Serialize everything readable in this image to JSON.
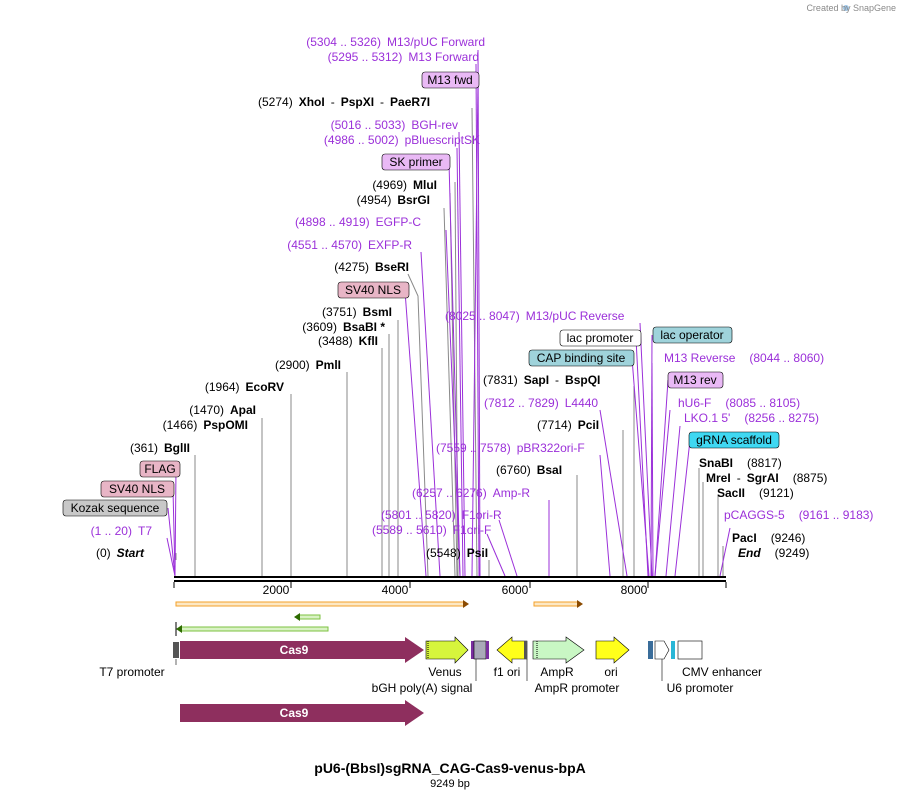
{
  "credit": "Created by  SnapGene",
  "plasmid": {
    "name": "pU6-(BbsI)sgRNA_CAG-Cas9-venus-bpA",
    "length_label": "9249 bp"
  },
  "axis": {
    "ticks": [
      "2000",
      "4000",
      "6000",
      "8000"
    ]
  },
  "site_labels": [
    {
      "id": "m13puc-fwd",
      "pos": "(5304 .. 5326)",
      "name": "M13/pUC Forward",
      "kind": "feat"
    },
    {
      "id": "m13-fwd",
      "pos": "(5295 .. 5312)",
      "name": "M13 Forward",
      "kind": "feat"
    },
    {
      "id": "xhoi",
      "pos": "(5274)",
      "name": "XhoI",
      "extra": [
        "PspXI",
        "PaeR7I"
      ],
      "kind": "enz"
    },
    {
      "id": "bgh-rev",
      "pos": "(5016 .. 5033)",
      "name": "BGH-rev",
      "kind": "feat"
    },
    {
      "id": "pbluescriptsk",
      "pos": "(4986 .. 5002)",
      "name": "pBluescriptSK",
      "kind": "feat"
    },
    {
      "id": "mlui",
      "pos": "(4969)",
      "name": "MluI",
      "kind": "enz"
    },
    {
      "id": "bsrgi",
      "pos": "(4954)",
      "name": "BsrGI",
      "kind": "enz"
    },
    {
      "id": "egfp-c",
      "pos": "(4898 .. 4919)",
      "name": "EGFP-C",
      "kind": "feat"
    },
    {
      "id": "exfp-r",
      "pos": "(4551 .. 4570)",
      "name": "EXFP-R",
      "kind": "feat"
    },
    {
      "id": "bseri",
      "pos": "(4275)",
      "name": "BseRI",
      "kind": "enz"
    },
    {
      "id": "bsmi",
      "pos": "(3751)",
      "name": "BsmI",
      "kind": "enz"
    },
    {
      "id": "bsabi",
      "pos": "(3609)",
      "name": "BsaBI *",
      "kind": "enz"
    },
    {
      "id": "kfli",
      "pos": "(3488)",
      "name": "KflI",
      "kind": "enz"
    },
    {
      "id": "pmli",
      "pos": "(2900)",
      "name": "PmlI",
      "kind": "enz"
    },
    {
      "id": "ecorv",
      "pos": "(1964)",
      "name": "EcoRV",
      "kind": "enz"
    },
    {
      "id": "apai",
      "pos": "(1470)",
      "name": "ApaI",
      "kind": "enz"
    },
    {
      "id": "pspomi",
      "pos": "(1466)",
      "name": "PspOMI",
      "kind": "enz"
    },
    {
      "id": "bglii",
      "pos": "(361)",
      "name": "BglII",
      "kind": "enz"
    },
    {
      "id": "t7",
      "pos": "(1 .. 20)",
      "name": "T7",
      "kind": "feat"
    },
    {
      "id": "start",
      "pos": "(0)",
      "name": "Start",
      "kind": "start"
    },
    {
      "id": "m13puc-rev",
      "pos": "(8025 .. 8047)",
      "name": "M13/pUC Reverse",
      "kind": "feat"
    },
    {
      "id": "sapi",
      "pos": "(7831)",
      "name": "SapI",
      "extra": [
        "BspQI"
      ],
      "kind": "enz"
    },
    {
      "id": "l4440",
      "pos": "(7812 .. 7829)",
      "name": "L4440",
      "kind": "feat"
    },
    {
      "id": "pcii",
      "pos": "(7714)",
      "name": "PciI",
      "kind": "enz"
    },
    {
      "id": "pbr322",
      "pos": "(7559 .. 7578)",
      "name": "pBR322ori-F",
      "kind": "feat"
    },
    {
      "id": "bsai",
      "pos": "(6760)",
      "name": "BsaI",
      "kind": "enz"
    },
    {
      "id": "amp-r",
      "pos": "(6257 .. 6276)",
      "name": "Amp-R",
      "kind": "feat"
    },
    {
      "id": "f1ori-r",
      "pos": "(5801 .. 5820)",
      "name": "F1ori-R",
      "kind": "feat"
    },
    {
      "id": "f1ori-f",
      "pos": "(5589 .. 5610)",
      "name": "F1ori-F",
      "kind": "feat"
    },
    {
      "id": "psii",
      "pos": "(5548)",
      "name": "PsiI",
      "kind": "enz"
    },
    {
      "id": "m13-rev",
      "pos": "(8044 .. 8060)",
      "name": "M13 Reverse",
      "kind": "feat"
    },
    {
      "id": "hu6-f",
      "pos": "(8085 .. 8105)",
      "name": "hU6-F",
      "kind": "feat"
    },
    {
      "id": "lko15",
      "pos": "(8256 .. 8275)",
      "name": "LKO.1 5'",
      "kind": "feat"
    },
    {
      "id": "snabi",
      "pos": "(8817)",
      "name": "SnaBI",
      "kind": "enz"
    },
    {
      "id": "krei",
      "pos": "(8875)",
      "name": "MreI",
      "extra": [
        "SgrAI"
      ],
      "kind": "enz"
    },
    {
      "id": "sacii",
      "pos": "(9121)",
      "name": "SacII",
      "kind": "enz"
    },
    {
      "id": "pcaggs5",
      "pos": "(9161 .. 9183)",
      "name": "pCAGGS-5",
      "kind": "feat"
    },
    {
      "id": "paci",
      "pos": "(9246)",
      "name": "PacI",
      "kind": "enz"
    },
    {
      "id": "end",
      "pos": "(9249)",
      "name": "End",
      "kind": "start"
    }
  ],
  "boxed_labels": [
    {
      "id": "m13fwd-box",
      "text": "M13 fwd",
      "fill": "#e9b9f5"
    },
    {
      "id": "skprimer-box",
      "text": "SK primer",
      "fill": "#e9b9f5"
    },
    {
      "id": "sv40nls-box-1",
      "text": "SV40 NLS",
      "fill": "#e8b5c6"
    },
    {
      "id": "flag-box",
      "text": "FLAG",
      "fill": "#e8b5c6"
    },
    {
      "id": "sv40nls-box-2",
      "text": "SV40 NLS",
      "fill": "#e8b5c6"
    },
    {
      "id": "kozak-box",
      "text": "Kozak sequence",
      "fill": "#c8c8c8"
    },
    {
      "id": "lacpromoter-box",
      "text": "lac promoter",
      "fill": "#ffffff"
    },
    {
      "id": "lacoperator-box",
      "text": "lac operator",
      "fill": "#9fd3db"
    },
    {
      "id": "capsite-box",
      "text": "CAP binding site",
      "fill": "#9fd3db"
    },
    {
      "id": "m13rev-box",
      "text": "M13 rev",
      "fill": "#e9b9f5"
    },
    {
      "id": "grna-box",
      "text": "gRNA scaffold",
      "fill": "#3fd8f2"
    }
  ],
  "features": {
    "cas9": "Cas9",
    "cas9_copy": "Cas9",
    "venus": "Venus",
    "bgh": "bGH poly(A) signal",
    "f1ori": "f1 ori",
    "ampr": "AmpR",
    "ampr_promoter": "AmpR promoter",
    "ori": "ori",
    "u6": "U6 promoter",
    "cmv": "CMV enhancer",
    "t7promoter": "T7 promoter"
  },
  "colors": {
    "enzyme_line": "#8a8a8a",
    "feature_line": "#9b30d9",
    "cas9": "#8e2f5e",
    "venus": "#d6f53c",
    "ampr": "#c9f7c4",
    "ori": "#ffff1a",
    "orange_arrow": "#f3a02a",
    "green_arrow": "#7dc242"
  }
}
